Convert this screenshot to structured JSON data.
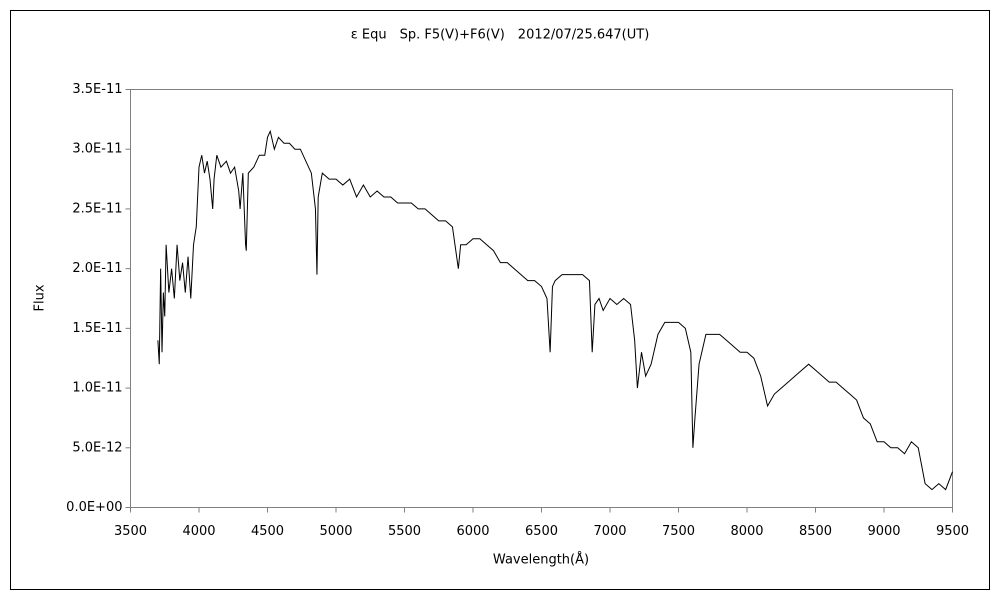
{
  "chart_data": {
    "type": "line",
    "title": "ε Equ　Sp. F5(V)+F6(V)　2012/07/25.647(UT)",
    "x_label": "Wavelength(Å)",
    "y_label": "Flux",
    "color": "#000000",
    "grid": false,
    "xlim": [
      3500,
      9500
    ],
    "xticks": [
      3500,
      4000,
      4500,
      5000,
      5500,
      6000,
      6500,
      7000,
      7500,
      8000,
      8500,
      9000,
      9500
    ],
    "ylim": [
      0,
      3.5e-11
    ],
    "yticks": [
      {
        "value": 0,
        "label": "0.0E+00"
      },
      {
        "value": 5e-12,
        "label": "5.0E-12"
      },
      {
        "value": 1e-11,
        "label": "1.0E-11"
      },
      {
        "value": 1.5e-11,
        "label": "1.5E-11"
      },
      {
        "value": 2e-11,
        "label": "2.0E-11"
      },
      {
        "value": 2.5e-11,
        "label": "2.5E-11"
      },
      {
        "value": 3e-11,
        "label": "3.0E-11"
      },
      {
        "value": 3.5e-11,
        "label": "3.5E-11"
      }
    ],
    "x": [
      3700,
      3710,
      3720,
      3730,
      3740,
      3750,
      3760,
      3780,
      3800,
      3820,
      3840,
      3860,
      3880,
      3900,
      3920,
      3940,
      3960,
      3980,
      4000,
      4020,
      4040,
      4060,
      4080,
      4100,
      4110,
      4130,
      4160,
      4200,
      4230,
      4260,
      4290,
      4300,
      4320,
      4340,
      4345,
      4360,
      4400,
      4440,
      4480,
      4500,
      4520,
      4550,
      4580,
      4620,
      4660,
      4700,
      4740,
      4780,
      4820,
      4850,
      4861,
      4870,
      4900,
      4950,
      5000,
      5050,
      5100,
      5150,
      5200,
      5250,
      5300,
      5350,
      5400,
      5450,
      5500,
      5550,
      5600,
      5650,
      5700,
      5750,
      5800,
      5850,
      5893,
      5910,
      5950,
      6000,
      6050,
      6100,
      6150,
      6200,
      6250,
      6300,
      6350,
      6400,
      6450,
      6500,
      6540,
      6563,
      6580,
      6600,
      6650,
      6700,
      6750,
      6800,
      6850,
      6870,
      6890,
      6920,
      6950,
      7000,
      7050,
      7100,
      7150,
      7180,
      7200,
      7230,
      7260,
      7300,
      7350,
      7400,
      7450,
      7500,
      7550,
      7590,
      7605,
      7620,
      7650,
      7700,
      7750,
      7800,
      7850,
      7900,
      7950,
      8000,
      8050,
      8100,
      8150,
      8200,
      8250,
      8300,
      8350,
      8400,
      8450,
      8500,
      8550,
      8600,
      8650,
      8700,
      8750,
      8800,
      8850,
      8900,
      8950,
      9000,
      9050,
      9100,
      9150,
      9200,
      9250,
      9300,
      9350,
      9400,
      9450,
      9500
    ],
    "values": [
      1.4e-11,
      1.2e-11,
      2e-11,
      1.3e-11,
      1.8e-11,
      1.6e-11,
      2.2e-11,
      1.8e-11,
      2e-11,
      1.75e-11,
      2.2e-11,
      1.9e-11,
      2.05e-11,
      1.8e-11,
      2.1e-11,
      1.75e-11,
      2.2e-11,
      2.35e-11,
      2.85e-11,
      2.95e-11,
      2.8e-11,
      2.9e-11,
      2.75e-11,
      2.5e-11,
      2.75e-11,
      2.95e-11,
      2.85e-11,
      2.9e-11,
      2.8e-11,
      2.85e-11,
      2.65e-11,
      2.5e-11,
      2.8e-11,
      2.2e-11,
      2.15e-11,
      2.8e-11,
      2.85e-11,
      2.95e-11,
      2.95e-11,
      3.1e-11,
      3.15e-11,
      3e-11,
      3.1e-11,
      3.05e-11,
      3.05e-11,
      3e-11,
      3e-11,
      2.9e-11,
      2.8e-11,
      2.5e-11,
      1.95e-11,
      2.6e-11,
      2.8e-11,
      2.75e-11,
      2.75e-11,
      2.7e-11,
      2.75e-11,
      2.6e-11,
      2.7e-11,
      2.6e-11,
      2.65e-11,
      2.6e-11,
      2.6e-11,
      2.55e-11,
      2.55e-11,
      2.55e-11,
      2.5e-11,
      2.5e-11,
      2.45e-11,
      2.4e-11,
      2.4e-11,
      2.35e-11,
      2e-11,
      2.2e-11,
      2.2e-11,
      2.25e-11,
      2.25e-11,
      2.2e-11,
      2.15e-11,
      2.05e-11,
      2.05e-11,
      2e-11,
      1.95e-11,
      1.9e-11,
      1.9e-11,
      1.85e-11,
      1.75e-11,
      1.3e-11,
      1.85e-11,
      1.9e-11,
      1.95e-11,
      1.95e-11,
      1.95e-11,
      1.95e-11,
      1.9e-11,
      1.3e-11,
      1.7e-11,
      1.75e-11,
      1.65e-11,
      1.75e-11,
      1.7e-11,
      1.75e-11,
      1.7e-11,
      1.4e-11,
      1e-11,
      1.3e-11,
      1.1e-11,
      1.2e-11,
      1.45e-11,
      1.55e-11,
      1.55e-11,
      1.55e-11,
      1.5e-11,
      1.3e-11,
      5e-12,
      7.5e-12,
      1.2e-11,
      1.45e-11,
      1.45e-11,
      1.45e-11,
      1.4e-11,
      1.35e-11,
      1.3e-11,
      1.3e-11,
      1.25e-11,
      1.1e-11,
      8.5e-12,
      9.5e-12,
      1e-11,
      1.05e-11,
      1.1e-11,
      1.15e-11,
      1.2e-11,
      1.15e-11,
      1.1e-11,
      1.05e-11,
      1.05e-11,
      1e-11,
      9.5e-12,
      9e-12,
      7.5e-12,
      7e-12,
      5.5e-12,
      5.5e-12,
      5e-12,
      5e-12,
      4.5e-12,
      5.5e-12,
      5e-12,
      2e-12,
      1.5e-12,
      2e-12,
      1.5e-12,
      3e-12
    ]
  }
}
